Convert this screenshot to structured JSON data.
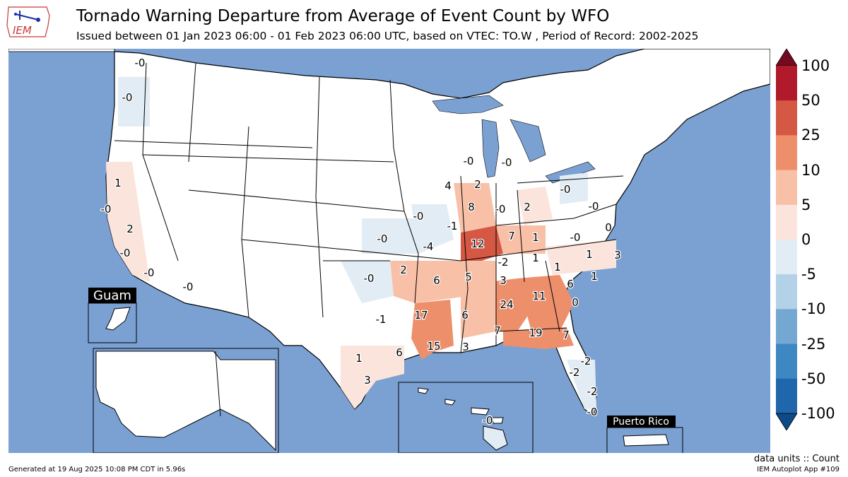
{
  "header": {
    "logo_text": "IEM",
    "title": "Tornado Warning Departure from Average of Event Count by WFO",
    "subtitle": "Issued between 01 Jan 2023 06:00 - 01 Feb 2023 06:00 UTC, based on VTEC: TO.W  , Period of Record: 2002-2025"
  },
  "colors": {
    "ocean": "#7ba1d3",
    "land": "#ffffff",
    "border": "#000000",
    "bins": [
      "#0e4a87",
      "#1f66ad",
      "#3d88c3",
      "#74a8d3",
      "#b3d1e7",
      "#e2ecf4",
      "#fbe4dc",
      "#f8c0a7",
      "#ee8f6c",
      "#d45844",
      "#b01a2a",
      "#730a1f"
    ]
  },
  "colorbar": {
    "ticks": [
      "100",
      "50",
      "25",
      "10",
      "5",
      "0",
      "-5",
      "-10",
      "-25",
      "-50",
      "-100"
    ]
  },
  "insets": {
    "guam_label": "Guam",
    "puerto_rico_label": "Puerto Rico"
  },
  "wfo_values": [
    {
      "v": "-0"
    },
    {
      "v": "-0"
    },
    {
      "v": "1"
    },
    {
      "v": "-0"
    },
    {
      "v": "2"
    },
    {
      "v": "-0"
    },
    {
      "v": "-0"
    },
    {
      "v": "-0"
    },
    {
      "v": "-0"
    },
    {
      "v": "-0"
    },
    {
      "v": "4"
    },
    {
      "v": "2"
    },
    {
      "v": "8"
    },
    {
      "v": "-0"
    },
    {
      "v": "2"
    },
    {
      "v": "-0"
    },
    {
      "v": "-0"
    },
    {
      "v": "-0"
    },
    {
      "v": "-1"
    },
    {
      "v": "-0"
    },
    {
      "v": "-4"
    },
    {
      "v": "12"
    },
    {
      "v": "7"
    },
    {
      "v": "1"
    },
    {
      "v": "-0"
    },
    {
      "v": "0"
    },
    {
      "v": "1"
    },
    {
      "v": "3"
    },
    {
      "v": "-2"
    },
    {
      "v": "1"
    },
    {
      "v": "1"
    },
    {
      "v": "2"
    },
    {
      "v": "-0"
    },
    {
      "v": "6"
    },
    {
      "v": "5"
    },
    {
      "v": "3"
    },
    {
      "v": "6"
    },
    {
      "v": "1"
    },
    {
      "v": "24"
    },
    {
      "v": "11"
    },
    {
      "v": "0"
    },
    {
      "v": "-1"
    },
    {
      "v": "17"
    },
    {
      "v": "6"
    },
    {
      "v": "7"
    },
    {
      "v": "19"
    },
    {
      "v": "7"
    },
    {
      "v": "6"
    },
    {
      "v": "15"
    },
    {
      "v": "3"
    },
    {
      "v": "1"
    },
    {
      "v": "3"
    },
    {
      "v": "-2"
    },
    {
      "v": "-2"
    },
    {
      "v": "-2"
    },
    {
      "v": "-0"
    },
    {
      "v": "-0"
    }
  ],
  "footer": {
    "generated": "Generated at 19 Aug 2025 10:08 PM CDT in 5.96s",
    "units": "data units :: Count",
    "app": "IEM Autoplot App #109"
  }
}
